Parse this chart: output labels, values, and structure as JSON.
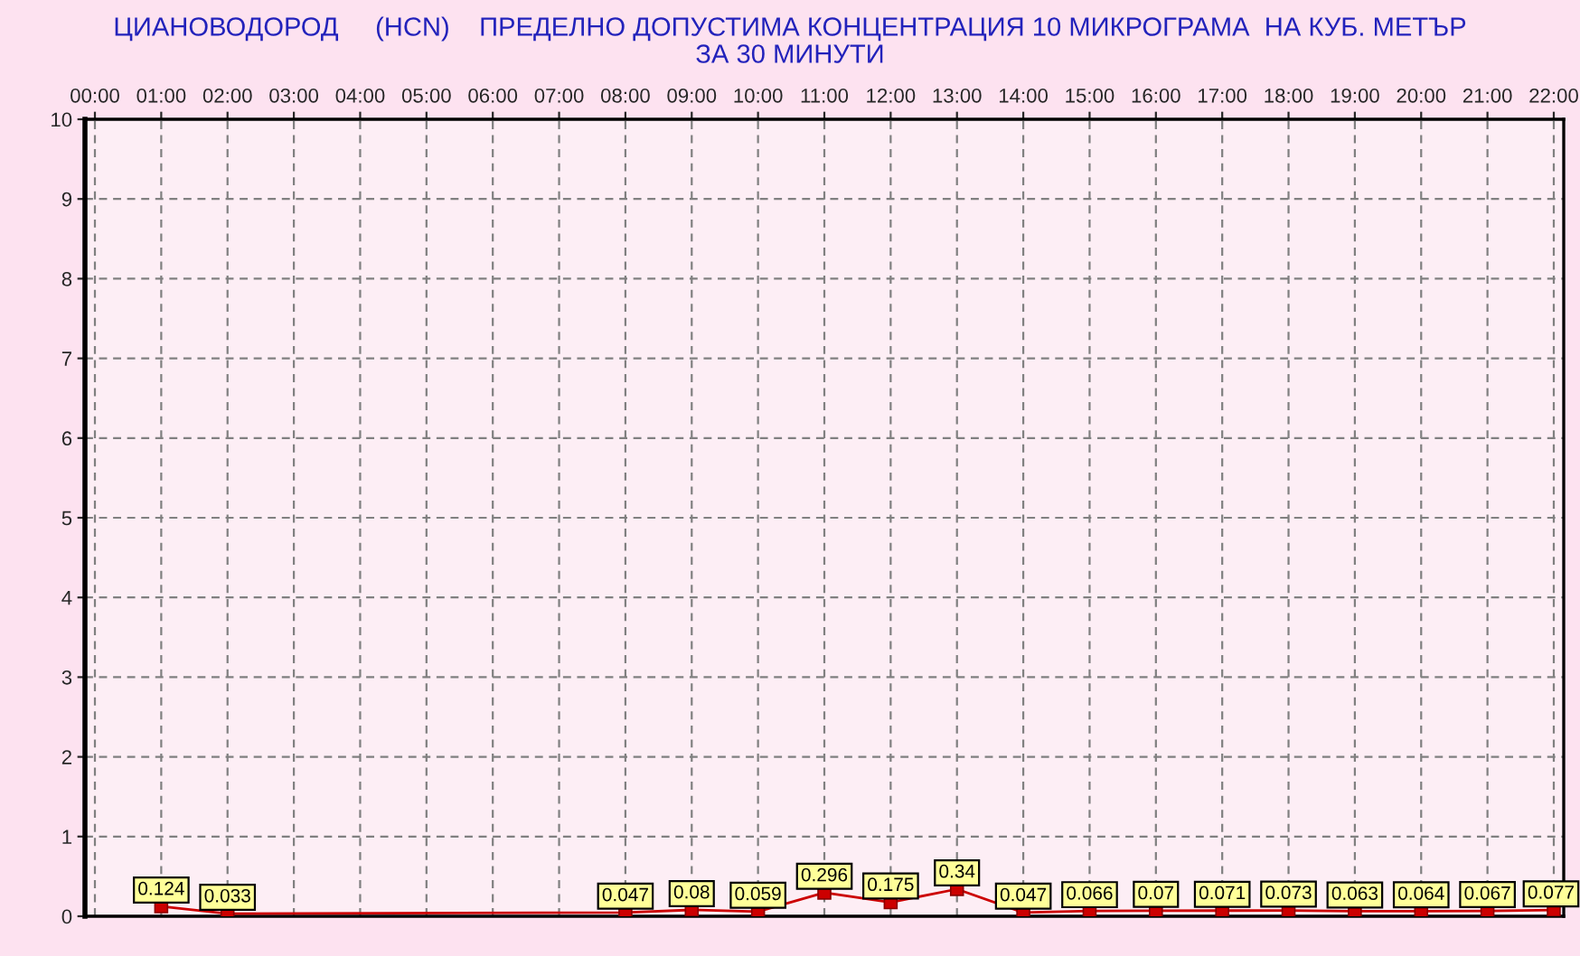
{
  "chart_data": {
    "type": "line",
    "title": "ЦИАНОВОДОРОД     (HCN)    ПРЕДЕЛНО ДОПУСТИМА КОНЦЕНТРАЦИЯ 10 МИКРОГРАМА  НА КУБ. МЕТЪР",
    "subtitle": "ЗА 30 МИНУТИ",
    "x": [
      1,
      2,
      8,
      9,
      10,
      11,
      12,
      13,
      14,
      15,
      16,
      17,
      18,
      19,
      20,
      21,
      22
    ],
    "values": [
      0.124,
      0.033,
      0.047,
      0.08,
      0.059,
      0.296,
      0.175,
      0.34,
      0.047,
      0.066,
      0.07,
      0.071,
      0.073,
      0.063,
      0.064,
      0.067,
      0.077
    ],
    "color": "#cc0000",
    "marker": "square",
    "line_style": "solid",
    "data_labels": true,
    "xlim": [
      -0.15,
      22.15
    ],
    "xticks": [
      {
        "value": 0,
        "label": "00:00"
      },
      {
        "value": 1,
        "label": "01:00"
      },
      {
        "value": 2,
        "label": "02:00"
      },
      {
        "value": 3,
        "label": "03:00"
      },
      {
        "value": 4,
        "label": "04:00"
      },
      {
        "value": 5,
        "label": "05:00"
      },
      {
        "value": 6,
        "label": "06:00"
      },
      {
        "value": 7,
        "label": "07:00"
      },
      {
        "value": 8,
        "label": "08:00"
      },
      {
        "value": 9,
        "label": "09:00"
      },
      {
        "value": 10,
        "label": "10:00"
      },
      {
        "value": 11,
        "label": "11:00"
      },
      {
        "value": 12,
        "label": "12:00"
      },
      {
        "value": 13,
        "label": "13:00"
      },
      {
        "value": 14,
        "label": "14:00"
      },
      {
        "value": 15,
        "label": "15:00"
      },
      {
        "value": 16,
        "label": "16:00"
      },
      {
        "value": 17,
        "label": "17:00"
      },
      {
        "value": 18,
        "label": "18:00"
      },
      {
        "value": 19,
        "label": "19:00"
      },
      {
        "value": 20,
        "label": "20:00"
      },
      {
        "value": 21,
        "label": "21:00"
      },
      {
        "value": 22,
        "label": "22:00"
      }
    ],
    "ylim": [
      0,
      10
    ],
    "yticks": [
      0,
      1,
      2,
      3,
      4,
      5,
      6,
      7,
      8,
      9,
      10
    ],
    "grid": true
  }
}
